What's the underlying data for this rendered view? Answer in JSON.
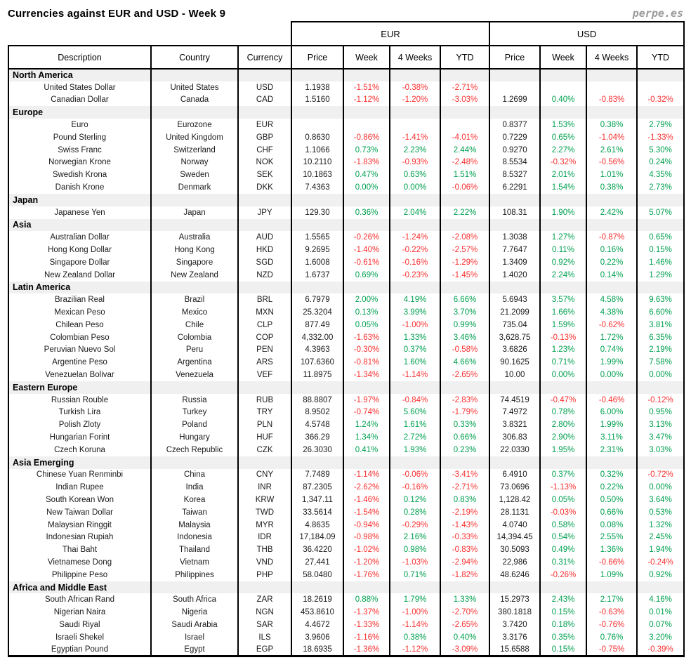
{
  "header": {
    "title": "Currencies against EUR and USD - Week 9",
    "logo": "perpe.es"
  },
  "colors": {
    "positive": "#00a050",
    "negative": "#f93030",
    "section_bg": "#f0f0f0",
    "border": "#000000",
    "logo_gray": "#9b9b9b"
  },
  "table": {
    "group_headers": [
      {
        "label": "EUR",
        "span": 4
      },
      {
        "label": "USD",
        "span": 4
      }
    ],
    "columns": [
      "Description",
      "Country",
      "Currency",
      "Price",
      "Week",
      "4 Weeks",
      "YTD",
      "Price",
      "Week",
      "4 Weeks",
      "YTD"
    ],
    "sections": [
      {
        "name": "North America",
        "rows": [
          {
            "description": "United States Dollar",
            "country": "United States",
            "currency": "USD",
            "eur": [
              "1.1938",
              "-1.51%",
              "-0.38%",
              "-2.71%"
            ],
            "usd": [
              "",
              "",
              "",
              ""
            ]
          },
          {
            "description": "Canadian Dollar",
            "country": "Canada",
            "currency": "CAD",
            "eur": [
              "1.5160",
              "-1.12%",
              "-1.20%",
              "-3.03%"
            ],
            "usd": [
              "1.2699",
              "0.40%",
              "-0.83%",
              "-0.32%"
            ]
          }
        ]
      },
      {
        "name": "Europe",
        "rows": [
          {
            "description": "Euro",
            "country": "Eurozone",
            "currency": "EUR",
            "eur": [
              "",
              "",
              "",
              ""
            ],
            "usd": [
              "0.8377",
              "1.53%",
              "0.38%",
              "2.79%"
            ]
          },
          {
            "description": "Pound Sterling",
            "country": "United Kingdom",
            "currency": "GBP",
            "eur": [
              "0.8630",
              "-0.86%",
              "-1.41%",
              "-4.01%"
            ],
            "usd": [
              "0.7229",
              "0.65%",
              "-1.04%",
              "-1.33%"
            ]
          },
          {
            "description": "Swiss Franc",
            "country": "Switzerland",
            "currency": "CHF",
            "eur": [
              "1.1066",
              "0.73%",
              "2.23%",
              "2.44%"
            ],
            "usd": [
              "0.9270",
              "2.27%",
              "2.61%",
              "5.30%"
            ]
          },
          {
            "description": "Norwegian Krone",
            "country": "Norway",
            "currency": "NOK",
            "eur": [
              "10.2110",
              "-1.83%",
              "-0.93%",
              "-2.48%"
            ],
            "usd": [
              "8.5534",
              "-0.32%",
              "-0.56%",
              "0.24%"
            ]
          },
          {
            "description": "Swedish Krona",
            "country": "Sweden",
            "currency": "SEK",
            "eur": [
              "10.1863",
              "0.47%",
              "0.63%",
              "1.51%"
            ],
            "usd": [
              "8.5327",
              "2.01%",
              "1.01%",
              "4.35%"
            ]
          },
          {
            "description": "Danish Krone",
            "country": "Denmark",
            "currency": "DKK",
            "eur": [
              "7.4363",
              "0.00%",
              "0.00%",
              "-0.06%"
            ],
            "usd": [
              "6.2291",
              "1.54%",
              "0.38%",
              "2.73%"
            ]
          }
        ]
      },
      {
        "name": "Japan",
        "rows": [
          {
            "description": "Japanese Yen",
            "country": "Japan",
            "currency": "JPY",
            "eur": [
              "129.30",
              "0.36%",
              "2.04%",
              "2.22%"
            ],
            "usd": [
              "108.31",
              "1.90%",
              "2.42%",
              "5.07%"
            ]
          }
        ]
      },
      {
        "name": "Asia",
        "rows": [
          {
            "description": "Australian Dollar",
            "country": "Australia",
            "currency": "AUD",
            "eur": [
              "1.5565",
              "-0.26%",
              "-1.24%",
              "-2.08%"
            ],
            "usd": [
              "1.3038",
              "1.27%",
              "-0.87%",
              "0.65%"
            ]
          },
          {
            "description": "Hong Kong Dollar",
            "country": "Hong Kong",
            "currency": "HKD",
            "eur": [
              "9.2695",
              "-1.40%",
              "-0.22%",
              "-2.57%"
            ],
            "usd": [
              "7.7647",
              "0.11%",
              "0.16%",
              "0.15%"
            ]
          },
          {
            "description": "Singapore Dollar",
            "country": "Singapore",
            "currency": "SGD",
            "eur": [
              "1.6008",
              "-0.61%",
              "-0.16%",
              "-1.29%"
            ],
            "usd": [
              "1.3409",
              "0.92%",
              "0.22%",
              "1.46%"
            ]
          },
          {
            "description": "New Zealand Dollar",
            "country": "New Zealand",
            "currency": "NZD",
            "eur": [
              "1.6737",
              "0.69%",
              "-0.23%",
              "-1.45%"
            ],
            "usd": [
              "1.4020",
              "2.24%",
              "0.14%",
              "1.29%"
            ]
          }
        ]
      },
      {
        "name": "Latin America",
        "rows": [
          {
            "description": "Brazilian Real",
            "country": "Brazil",
            "currency": "BRL",
            "eur": [
              "6.7979",
              "2.00%",
              "4.19%",
              "6.66%"
            ],
            "usd": [
              "5.6943",
              "3.57%",
              "4.58%",
              "9.63%"
            ]
          },
          {
            "description": "Mexican Peso",
            "country": "Mexico",
            "currency": "MXN",
            "eur": [
              "25.3204",
              "0.13%",
              "3.99%",
              "3.70%"
            ],
            "usd": [
              "21.2099",
              "1.66%",
              "4.38%",
              "6.60%"
            ]
          },
          {
            "description": "Chilean Peso",
            "country": "Chile",
            "currency": "CLP",
            "eur": [
              "877.49",
              "0.05%",
              "-1.00%",
              "0.99%"
            ],
            "usd": [
              "735.04",
              "1.59%",
              "-0.62%",
              "3.81%"
            ]
          },
          {
            "description": "Colombian Peso",
            "country": "Colombia",
            "currency": "COP",
            "eur": [
              "4,332.00",
              "-1.63%",
              "1.33%",
              "3.46%"
            ],
            "usd": [
              "3,628.75",
              "-0.13%",
              "1.72%",
              "6.35%"
            ]
          },
          {
            "description": "Peruvian Nuevo Sol",
            "country": "Peru",
            "currency": "PEN",
            "eur": [
              "4.3963",
              "-0.30%",
              "0.37%",
              "-0.58%"
            ],
            "usd": [
              "3.6826",
              "1.23%",
              "0.74%",
              "2.19%"
            ]
          },
          {
            "description": "Argentine Peso",
            "country": "Argentina",
            "currency": "ARS",
            "eur": [
              "107.6360",
              "-0.81%",
              "1.60%",
              "4.66%"
            ],
            "usd": [
              "90.1625",
              "0.71%",
              "1.99%",
              "7.58%"
            ]
          },
          {
            "description": "Venezuelan Bolivar",
            "country": "Venezuela",
            "currency": "VEF",
            "eur": [
              "11.8975",
              "-1.34%",
              "-1.14%",
              "-2.65%"
            ],
            "usd": [
              "10.00",
              "0.00%",
              "0.00%",
              "0.00%"
            ]
          }
        ]
      },
      {
        "name": "Eastern Europe",
        "rows": [
          {
            "description": "Russian Rouble",
            "country": "Russia",
            "currency": "RUB",
            "eur": [
              "88.8807",
              "-1.97%",
              "-0.84%",
              "-2.83%"
            ],
            "usd": [
              "74.4519",
              "-0.47%",
              "-0.46%",
              "-0.12%"
            ]
          },
          {
            "description": "Turkish Lira",
            "country": "Turkey",
            "currency": "TRY",
            "eur": [
              "8.9502",
              "-0.74%",
              "5.60%",
              "-1.79%"
            ],
            "usd": [
              "7.4972",
              "0.78%",
              "6.00%",
              "0.95%"
            ]
          },
          {
            "description": "Polish Zloty",
            "country": "Poland",
            "currency": "PLN",
            "eur": [
              "4.5748",
              "1.24%",
              "1.61%",
              "0.33%"
            ],
            "usd": [
              "3.8321",
              "2.80%",
              "1.99%",
              "3.13%"
            ]
          },
          {
            "description": "Hungarian Forint",
            "country": "Hungary",
            "currency": "HUF",
            "eur": [
              "366.29",
              "1.34%",
              "2.72%",
              "0.66%"
            ],
            "usd": [
              "306.83",
              "2.90%",
              "3.11%",
              "3.47%"
            ]
          },
          {
            "description": "Czech Koruna",
            "country": "Czech Republic",
            "currency": "CZK",
            "eur": [
              "26.3030",
              "0.41%",
              "1.93%",
              "0.23%"
            ],
            "usd": [
              "22.0330",
              "1.95%",
              "2.31%",
              "3.03%"
            ]
          }
        ]
      },
      {
        "name": "Asia Emerging",
        "rows": [
          {
            "description": "Chinese Yuan Renminbi",
            "country": "China",
            "currency": "CNY",
            "eur": [
              "7.7489",
              "-1.14%",
              "-0.06%",
              "-3.41%"
            ],
            "usd": [
              "6.4910",
              "0.37%",
              "0.32%",
              "-0.72%"
            ]
          },
          {
            "description": "Indian Rupee",
            "country": "India",
            "currency": "INR",
            "eur": [
              "87.2305",
              "-2.62%",
              "-0.16%",
              "-2.71%"
            ],
            "usd": [
              "73.0696",
              "-1.13%",
              "0.22%",
              "0.00%"
            ]
          },
          {
            "description": "South Korean Won",
            "country": "Korea",
            "currency": "KRW",
            "eur": [
              "1,347.11",
              "-1.46%",
              "0.12%",
              "0.83%"
            ],
            "usd": [
              "1,128.42",
              "0.05%",
              "0.50%",
              "3.64%"
            ]
          },
          {
            "description": "New Taiwan Dollar",
            "country": "Taiwan",
            "currency": "TWD",
            "eur": [
              "33.5614",
              "-1.54%",
              "0.28%",
              "-2.19%"
            ],
            "usd": [
              "28.1131",
              "-0.03%",
              "0.66%",
              "0.53%"
            ]
          },
          {
            "description": "Malaysian Ringgit",
            "country": "Malaysia",
            "currency": "MYR",
            "eur": [
              "4.8635",
              "-0.94%",
              "-0.29%",
              "-1.43%"
            ],
            "usd": [
              "4.0740",
              "0.58%",
              "0.08%",
              "1.32%"
            ]
          },
          {
            "description": "Indonesian Rupiah",
            "country": "Indonesia",
            "currency": "IDR",
            "eur": [
              "17,184.09",
              "-0.98%",
              "2.16%",
              "-0.33%"
            ],
            "usd": [
              "14,394.45",
              "0.54%",
              "2.55%",
              "2.45%"
            ]
          },
          {
            "description": "Thai Baht",
            "country": "Thailand",
            "currency": "THB",
            "eur": [
              "36.4220",
              "-1.02%",
              "0.98%",
              "-0.83%"
            ],
            "usd": [
              "30.5093",
              "0.49%",
              "1.36%",
              "1.94%"
            ]
          },
          {
            "description": "Vietnamese Dong",
            "country": "Vietnam",
            "currency": "VND",
            "eur": [
              "27,441",
              "-1.20%",
              "-1.03%",
              "-2.94%"
            ],
            "usd": [
              "22,986",
              "0.31%",
              "-0.66%",
              "-0.24%"
            ]
          },
          {
            "description": "Philippine Peso",
            "country": "Philippines",
            "currency": "PHP",
            "eur": [
              "58.0480",
              "-1.76%",
              "0.71%",
              "-1.82%"
            ],
            "usd": [
              "48.6246",
              "-0.26%",
              "1.09%",
              "0.92%"
            ]
          }
        ]
      },
      {
        "name": "Africa and Middle East",
        "rows": [
          {
            "description": "South African Rand",
            "country": "South Africa",
            "currency": "ZAR",
            "eur": [
              "18.2619",
              "0.88%",
              "1.79%",
              "1.33%"
            ],
            "usd": [
              "15.2973",
              "2.43%",
              "2.17%",
              "4.16%"
            ]
          },
          {
            "description": "Nigerian Naira",
            "country": "Nigeria",
            "currency": "NGN",
            "eur": [
              "453.8610",
              "-1.37%",
              "-1.00%",
              "-2.70%"
            ],
            "usd": [
              "380.1818",
              "0.15%",
              "-0.63%",
              "0.01%"
            ]
          },
          {
            "description": "Saudi Riyal",
            "country": "Saudi Arabia",
            "currency": "SAR",
            "eur": [
              "4.4672",
              "-1.33%",
              "-1.14%",
              "-2.65%"
            ],
            "usd": [
              "3.7420",
              "0.18%",
              "-0.76%",
              "0.07%"
            ]
          },
          {
            "description": "Israeli Shekel",
            "country": "Israel",
            "currency": "ILS",
            "eur": [
              "3.9606",
              "-1.16%",
              "0.38%",
              "0.40%"
            ],
            "usd": [
              "3.3176",
              "0.35%",
              "0.76%",
              "3.20%"
            ]
          },
          {
            "description": "Egyptian Pound",
            "country": "Egypt",
            "currency": "EGP",
            "eur": [
              "18.6935",
              "-1.36%",
              "-1.12%",
              "-3.09%"
            ],
            "usd": [
              "15.6588",
              "0.15%",
              "-0.75%",
              "-0.39%"
            ]
          }
        ]
      }
    ]
  }
}
